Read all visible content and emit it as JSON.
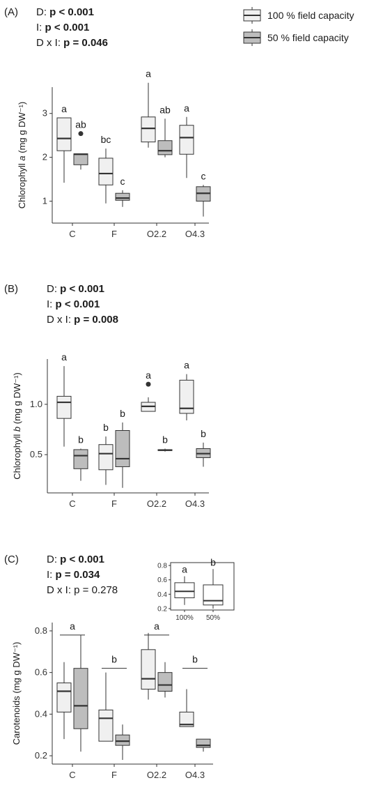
{
  "legend": {
    "items": [
      {
        "label": "100 % field capacity",
        "color": "#f0f0f0"
      },
      {
        "label": "50 % field capacity",
        "color": "#bdbdbd"
      }
    ]
  },
  "colors": {
    "box_100": "#f0f0f0",
    "box_50": "#bdbdbd",
    "stroke": "#333333"
  },
  "chart_data": [
    {
      "type": "box",
      "panel_label": "(A)",
      "stats": [
        {
          "name": "D: ",
          "value": "p < 0.001",
          "bold": true
        },
        {
          "name": "I: ",
          "value": "p < 0.001",
          "bold": true
        },
        {
          "name": "D x I: ",
          "value": "p = 0.046",
          "bold": true
        }
      ],
      "ylabel_pre": "Chlorophyll ",
      "ylabel_ital": "a",
      "ylabel_post": " (mg g DW⁻¹)",
      "ylim": [
        0.5,
        3.6
      ],
      "yticks": [
        1,
        2,
        3
      ],
      "categories": [
        "C",
        "F",
        "O2.2",
        "O4.3"
      ],
      "series": [
        {
          "name": "100 % field capacity",
          "boxes": [
            {
              "min": 1.42,
              "q1": 2.15,
              "median": 2.43,
              "q3": 2.9,
              "max": 2.9,
              "letter": "a"
            },
            {
              "min": 0.95,
              "q1": 1.37,
              "median": 1.63,
              "q3": 1.98,
              "max": 2.2,
              "letter": "bc"
            },
            {
              "min": 2.22,
              "q1": 2.35,
              "median": 2.66,
              "q3": 2.92,
              "max": 3.7,
              "letter": "a"
            },
            {
              "min": 1.53,
              "q1": 2.07,
              "median": 2.45,
              "q3": 2.73,
              "max": 2.92,
              "letter": "a"
            }
          ]
        },
        {
          "name": "50 % field capacity",
          "boxes": [
            {
              "min": 1.72,
              "q1": 1.83,
              "median": 2.07,
              "q3": 2.08,
              "max": 2.08,
              "outliers": [
                2.54
              ],
              "letter": "ab"
            },
            {
              "min": 0.87,
              "q1": 1.02,
              "median": 1.07,
              "q3": 1.18,
              "max": 1.25,
              "letter": "c"
            },
            {
              "min": 2.0,
              "q1": 2.06,
              "median": 2.15,
              "q3": 2.38,
              "max": 2.88,
              "letter": "ab"
            },
            {
              "min": 0.65,
              "q1": 1.0,
              "median": 1.18,
              "q3": 1.33,
              "max": 1.37,
              "letter": "c"
            }
          ]
        }
      ]
    },
    {
      "type": "box",
      "panel_label": "(B)",
      "stats": [
        {
          "name": "D: ",
          "value": "p < 0.001",
          "bold": true
        },
        {
          "name": "I: ",
          "value": "p < 0.001",
          "bold": true
        },
        {
          "name": "D x I: ",
          "value": "p = 0.008",
          "bold": true
        }
      ],
      "ylabel_pre": "Chlorophyll ",
      "ylabel_ital": "b",
      "ylabel_post": " (mg g DW⁻¹)",
      "ylim": [
        0.12,
        1.45
      ],
      "yticks": [
        0.5,
        1.0
      ],
      "ytick_labels": [
        "0.5",
        "1.0"
      ],
      "categories": [
        "C",
        "F",
        "O2.2",
        "O4.3"
      ],
      "series": [
        {
          "name": "100 % field capacity",
          "boxes": [
            {
              "min": 0.58,
              "q1": 0.86,
              "median": 1.02,
              "q3": 1.08,
              "max": 1.38,
              "letter": "a"
            },
            {
              "min": 0.2,
              "q1": 0.35,
              "median": 0.51,
              "q3": 0.6,
              "max": 0.68,
              "letter": "b"
            },
            {
              "min": 0.93,
              "q1": 0.93,
              "median": 0.98,
              "q3": 1.02,
              "max": 1.07,
              "outliers": [
                1.2
              ],
              "letter": "a"
            },
            {
              "min": 0.84,
              "q1": 0.91,
              "median": 0.96,
              "q3": 1.24,
              "max": 1.3,
              "letter": "a"
            }
          ]
        },
        {
          "name": "50 % field capacity",
          "boxes": [
            {
              "min": 0.24,
              "q1": 0.36,
              "median": 0.49,
              "q3": 0.55,
              "max": 0.56,
              "letter": "b"
            },
            {
              "min": 0.17,
              "q1": 0.38,
              "median": 0.46,
              "q3": 0.74,
              "max": 0.82,
              "letter": "b"
            },
            {
              "min": 0.53,
              "q1": 0.54,
              "median": 0.545,
              "q3": 0.55,
              "max": 0.56,
              "letter": "b"
            },
            {
              "min": 0.38,
              "q1": 0.47,
              "median": 0.51,
              "q3": 0.56,
              "max": 0.62,
              "letter": "b"
            }
          ]
        }
      ]
    },
    {
      "type": "box",
      "panel_label": "(C)",
      "stats": [
        {
          "name": "D: ",
          "value": "p < 0.001",
          "bold": true
        },
        {
          "name": "I: ",
          "value": "p = 0.034",
          "bold": true
        },
        {
          "name": "D x I: ",
          "value": "p = 0.278",
          "bold": false
        }
      ],
      "ylabel_pre": "Carotenoids (mg g DW⁻¹)",
      "ylabel_ital": "",
      "ylabel_post": "",
      "ylim": [
        0.16,
        0.84
      ],
      "yticks": [
        0.2,
        0.4,
        0.6,
        0.8
      ],
      "ytick_labels": [
        "0.2",
        "0.4",
        "0.6",
        "0.8"
      ],
      "categories": [
        "C",
        "F",
        "O2.2",
        "O4.3"
      ],
      "group_letters": [
        "a",
        "b",
        "a",
        "b"
      ],
      "group_bars": [
        0.78,
        0.62,
        0.78,
        0.62
      ],
      "series": [
        {
          "name": "100 % field capacity",
          "boxes": [
            {
              "min": 0.28,
              "q1": 0.41,
              "median": 0.51,
              "q3": 0.55,
              "max": 0.65
            },
            {
              "min": 0.27,
              "q1": 0.27,
              "median": 0.38,
              "q3": 0.42,
              "max": 0.6
            },
            {
              "min": 0.47,
              "q1": 0.52,
              "median": 0.57,
              "q3": 0.71,
              "max": 0.79
            },
            {
              "min": 0.34,
              "q1": 0.34,
              "median": 0.35,
              "q3": 0.41,
              "max": 0.52
            }
          ]
        },
        {
          "name": "50 % field capacity",
          "boxes": [
            {
              "min": 0.22,
              "q1": 0.33,
              "median": 0.44,
              "q3": 0.62,
              "max": 0.78
            },
            {
              "min": 0.18,
              "q1": 0.25,
              "median": 0.27,
              "q3": 0.3,
              "max": 0.35
            },
            {
              "min": 0.48,
              "q1": 0.51,
              "median": 0.54,
              "q3": 0.6,
              "max": 0.65
            },
            {
              "min": 0.22,
              "q1": 0.24,
              "median": 0.25,
              "q3": 0.28,
              "max": 0.28
            }
          ]
        }
      ],
      "inset": {
        "categories": [
          "100%",
          "50%"
        ],
        "ylim": [
          0.18,
          0.84
        ],
        "yticks": [
          0.2,
          0.4,
          0.6,
          0.8
        ],
        "ytick_labels": [
          "0.2",
          "0.4",
          "0.6",
          "0.8"
        ],
        "boxes": [
          {
            "min": 0.25,
            "q1": 0.35,
            "median": 0.44,
            "q3": 0.56,
            "max": 0.65,
            "letter": "a"
          },
          {
            "min": 0.2,
            "q1": 0.25,
            "median": 0.31,
            "q3": 0.53,
            "max": 0.75,
            "letter": "b"
          }
        ]
      }
    }
  ]
}
